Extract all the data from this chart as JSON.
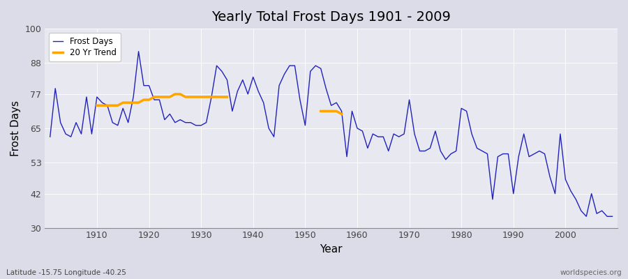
{
  "title": "Yearly Total Frost Days 1901 - 2009",
  "xlabel": "Year",
  "ylabel": "Frost Days",
  "subtitle": "Latitude -15.75 Longitude -40.25",
  "watermark": "worldspecies.org",
  "ylim": [
    30,
    100
  ],
  "yticks": [
    30,
    42,
    53,
    65,
    77,
    88,
    100
  ],
  "xlim": [
    1900,
    2010
  ],
  "xticks": [
    1910,
    1920,
    1930,
    1940,
    1950,
    1960,
    1970,
    1980,
    1990,
    2000
  ],
  "background_color": "#e8e8ec",
  "plot_bg_color": "#e8e8f0",
  "line_color": "#2222bb",
  "trend_color": "#ffa500",
  "frost_days_years": [
    1901,
    1902,
    1903,
    1904,
    1905,
    1906,
    1907,
    1908,
    1909,
    1910,
    1911,
    1912,
    1913,
    1914,
    1915,
    1916,
    1917,
    1918,
    1919,
    1920,
    1921,
    1922,
    1923,
    1924,
    1925,
    1926,
    1927,
    1928,
    1929,
    1930,
    1931,
    1932,
    1933,
    1934,
    1935,
    1936,
    1937,
    1938,
    1939,
    1940,
    1941,
    1942,
    1943,
    1944,
    1945,
    1946,
    1947,
    1948,
    1949,
    1950,
    1951,
    1952,
    1953,
    1954,
    1955,
    1956,
    1957,
    1958,
    1959,
    1960,
    1961,
    1962,
    1963,
    1964,
    1965,
    1966,
    1967,
    1968,
    1969,
    1970,
    1971,
    1972,
    1973,
    1974,
    1975,
    1976,
    1977,
    1978,
    1979,
    1980,
    1981,
    1982,
    1983,
    1984,
    1985,
    1986,
    1987,
    1988,
    1989,
    1990,
    1991,
    1992,
    1993,
    1994,
    1995,
    1996,
    1997,
    1998,
    1999,
    2000,
    2001,
    2002,
    2003,
    2004,
    2005,
    2006,
    2007,
    2008,
    2009
  ],
  "frost_days_values": [
    62,
    79,
    67,
    63,
    62,
    67,
    63,
    76,
    63,
    76,
    74,
    73,
    67,
    66,
    72,
    67,
    76,
    92,
    80,
    80,
    75,
    75,
    68,
    70,
    67,
    68,
    67,
    67,
    66,
    66,
    67,
    76,
    87,
    85,
    82,
    71,
    78,
    82,
    77,
    83,
    78,
    74,
    65,
    62,
    80,
    84,
    87,
    87,
    75,
    66,
    85,
    87,
    86,
    79,
    73,
    74,
    71,
    55,
    71,
    65,
    64,
    58,
    63,
    62,
    62,
    57,
    63,
    62,
    63,
    75,
    63,
    57,
    57,
    58,
    64,
    57,
    54,
    56,
    57,
    72,
    71,
    63,
    58,
    57,
    56,
    40,
    55,
    56,
    56,
    42,
    55,
    63,
    55,
    56,
    57,
    56,
    48,
    42,
    63,
    47,
    43,
    40,
    36,
    34,
    42,
    35,
    36,
    34,
    34
  ],
  "trend_segment1_years": [
    1910,
    1911,
    1912,
    1913,
    1914,
    1915,
    1916,
    1917,
    1918,
    1919,
    1920,
    1921,
    1922,
    1923,
    1924,
    1925,
    1926,
    1927,
    1928,
    1929,
    1930,
    1931,
    1932,
    1933,
    1934,
    1935
  ],
  "trend_segment1_values": [
    73,
    73,
    73,
    73,
    73,
    74,
    74,
    74,
    74,
    75,
    75,
    76,
    76,
    76,
    76,
    77,
    77,
    76,
    76,
    76,
    76,
    76,
    76,
    76,
    76,
    76
  ],
  "trend_segment2_years": [
    1953,
    1954,
    1955,
    1956,
    1957
  ],
  "trend_segment2_values": [
    71,
    71,
    71,
    71,
    70
  ]
}
